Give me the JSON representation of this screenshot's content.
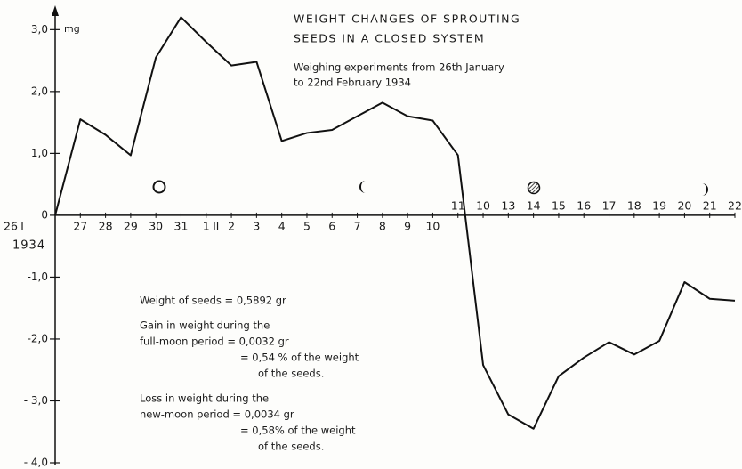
{
  "chart_data": {
    "type": "line",
    "title": [
      "WEIGHT CHANGES OF SPROUTING",
      "SEEDS IN A CLOSED SYSTEM"
    ],
    "subtitle": [
      "Weighing experiments from 26th January",
      "to 22nd February 1934"
    ],
    "y_unit": "mg",
    "categories": [
      "26",
      "27",
      "28",
      "29",
      "30",
      "31",
      "1",
      "2",
      "3",
      "4",
      "5",
      "6",
      "7",
      "8",
      "9",
      "10",
      "11",
      "10",
      "13",
      "14",
      "15",
      "16",
      "17",
      "18",
      "19",
      "20",
      "21",
      "22"
    ],
    "month_labels": [
      "I",
      "II"
    ],
    "year_label": "1934",
    "series": [
      {
        "color": "#111111",
        "values": [
          0,
          1.55,
          1.3,
          0.97,
          2.55,
          3.2,
          2.8,
          2.42,
          2.48,
          1.2,
          1.33,
          1.38,
          1.6,
          1.82,
          1.6,
          1.53,
          0.97,
          -2.42,
          -3.22,
          -3.45,
          -2.6,
          -2.3,
          -2.05,
          -2.25,
          -2.03,
          -1.08,
          -1.35,
          -1.38
        ]
      }
    ],
    "ylim": [
      -4,
      3.35
    ],
    "yticks": [
      {
        "value": 3,
        "label": "3,0"
      },
      {
        "value": 2,
        "label": "2,0"
      },
      {
        "value": 1,
        "label": "1,0"
      },
      0,
      {
        "value": -1,
        "label": "-1,0"
      },
      {
        "value": -2,
        "label": "-2,0"
      },
      {
        "value": -3,
        "label": "- 3,0"
      },
      {
        "value": -4,
        "label": "- 4,0"
      }
    ],
    "annotations": [
      "Weight of seeds  =  0,5892 gr",
      "Gain in weight during the",
      "full-moon period  =  0,0032 gr",
      "=  0,54 % of the weight",
      "of the seeds.",
      "Loss in weight during the",
      "new-moon period  =  0,0034 gr",
      "=  0,58% of the weight",
      "of the seeds."
    ]
  }
}
